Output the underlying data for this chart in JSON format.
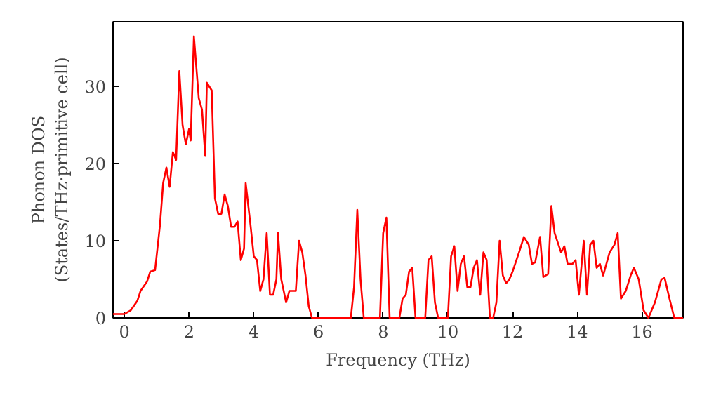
{
  "chart_data": {
    "type": "line",
    "xlabel": "Frequency (THz)",
    "ylabel": "Phonon DOS\n(States/THz·primitive cell)",
    "xlim": [
      -0.35,
      17.27
    ],
    "ylim": [
      0,
      38.4
    ],
    "xticks": [
      0,
      2,
      4,
      6,
      8,
      10,
      12,
      14,
      16
    ],
    "yticks": [
      0,
      10,
      20,
      30
    ],
    "grid": false,
    "marker": "none",
    "line_style": "solid",
    "series": [
      {
        "color": "#ff0000",
        "x": [
          -0.35,
          0,
          0.2,
          0.4,
          0.5,
          0.7,
          0.8,
          0.95,
          1.1,
          1.2,
          1.3,
          1.4,
          1.5,
          1.6,
          1.7,
          1.8,
          1.9,
          2.0,
          2.05,
          2.15,
          2.3,
          2.4,
          2.5,
          2.55,
          2.7,
          2.8,
          2.9,
          3.0,
          3.1,
          3.2,
          3.3,
          3.4,
          3.5,
          3.6,
          3.7,
          3.75,
          3.9,
          4.0,
          4.1,
          4.2,
          4.3,
          4.4,
          4.5,
          4.6,
          4.7,
          4.75,
          4.85,
          5.0,
          5.1,
          5.3,
          5.4,
          5.5,
          5.6,
          5.7,
          5.8,
          6.5,
          7.0,
          7.1,
          7.2,
          7.3,
          7.4,
          7.9,
          8.0,
          8.1,
          8.2,
          8.5,
          8.6,
          8.7,
          8.8,
          8.9,
          9.0,
          9.3,
          9.4,
          9.5,
          9.6,
          9.7,
          10.0,
          10.1,
          10.2,
          10.3,
          10.4,
          10.5,
          10.6,
          10.7,
          10.8,
          10.9,
          11.0,
          11.1,
          11.2,
          11.3,
          11.4,
          11.5,
          11.6,
          11.7,
          11.8,
          11.9,
          12.0,
          12.2,
          12.35,
          12.5,
          12.6,
          12.7,
          12.85,
          12.95,
          13.1,
          13.2,
          13.3,
          13.5,
          13.6,
          13.7,
          13.85,
          13.95,
          14.05,
          14.2,
          14.3,
          14.4,
          14.5,
          14.6,
          14.7,
          14.8,
          15.0,
          15.15,
          15.25,
          15.35,
          15.5,
          15.65,
          15.75,
          15.9,
          16.05,
          16.2,
          16.4,
          16.5,
          16.6,
          16.7,
          16.85,
          17.0,
          17.27
        ],
        "values": [
          0.5,
          0.5,
          1,
          2.2,
          3.5,
          4.7,
          6,
          6.2,
          12,
          17.5,
          19.5,
          17,
          21.5,
          20.5,
          32,
          25,
          22.5,
          24.5,
          23,
          36.5,
          28.5,
          27,
          21,
          30.5,
          29.5,
          15.5,
          13.5,
          13.5,
          16,
          14.5,
          11.8,
          11.8,
          12.5,
          7.5,
          9,
          17.5,
          12,
          8,
          7.5,
          3.5,
          5,
          11,
          3,
          3,
          5,
          11,
          5,
          2,
          3.5,
          3.5,
          10,
          8.5,
          5.5,
          1.5,
          0,
          0,
          0,
          4,
          14,
          5,
          0,
          0,
          11,
          13,
          0,
          0,
          2.5,
          3,
          6,
          6.5,
          0,
          0,
          7.5,
          8,
          2,
          0,
          0,
          8,
          9.3,
          3.5,
          7,
          8,
          4,
          4,
          6.5,
          7.5,
          3,
          8.5,
          7.5,
          0,
          0,
          2,
          10,
          5.5,
          4.5,
          5,
          6,
          8.5,
          10.5,
          9.5,
          7,
          7.2,
          10.5,
          5.3,
          5.7,
          14.5,
          11,
          8.5,
          9.3,
          7,
          7,
          7.5,
          3,
          10,
          3,
          9.5,
          10,
          6.5,
          7,
          5.5,
          8.5,
          9.5,
          11,
          2.5,
          3.5,
          5.5,
          6.5,
          5,
          1,
          0,
          2,
          3.5,
          5,
          5.2,
          2.5,
          0,
          0
        ]
      }
    ]
  }
}
